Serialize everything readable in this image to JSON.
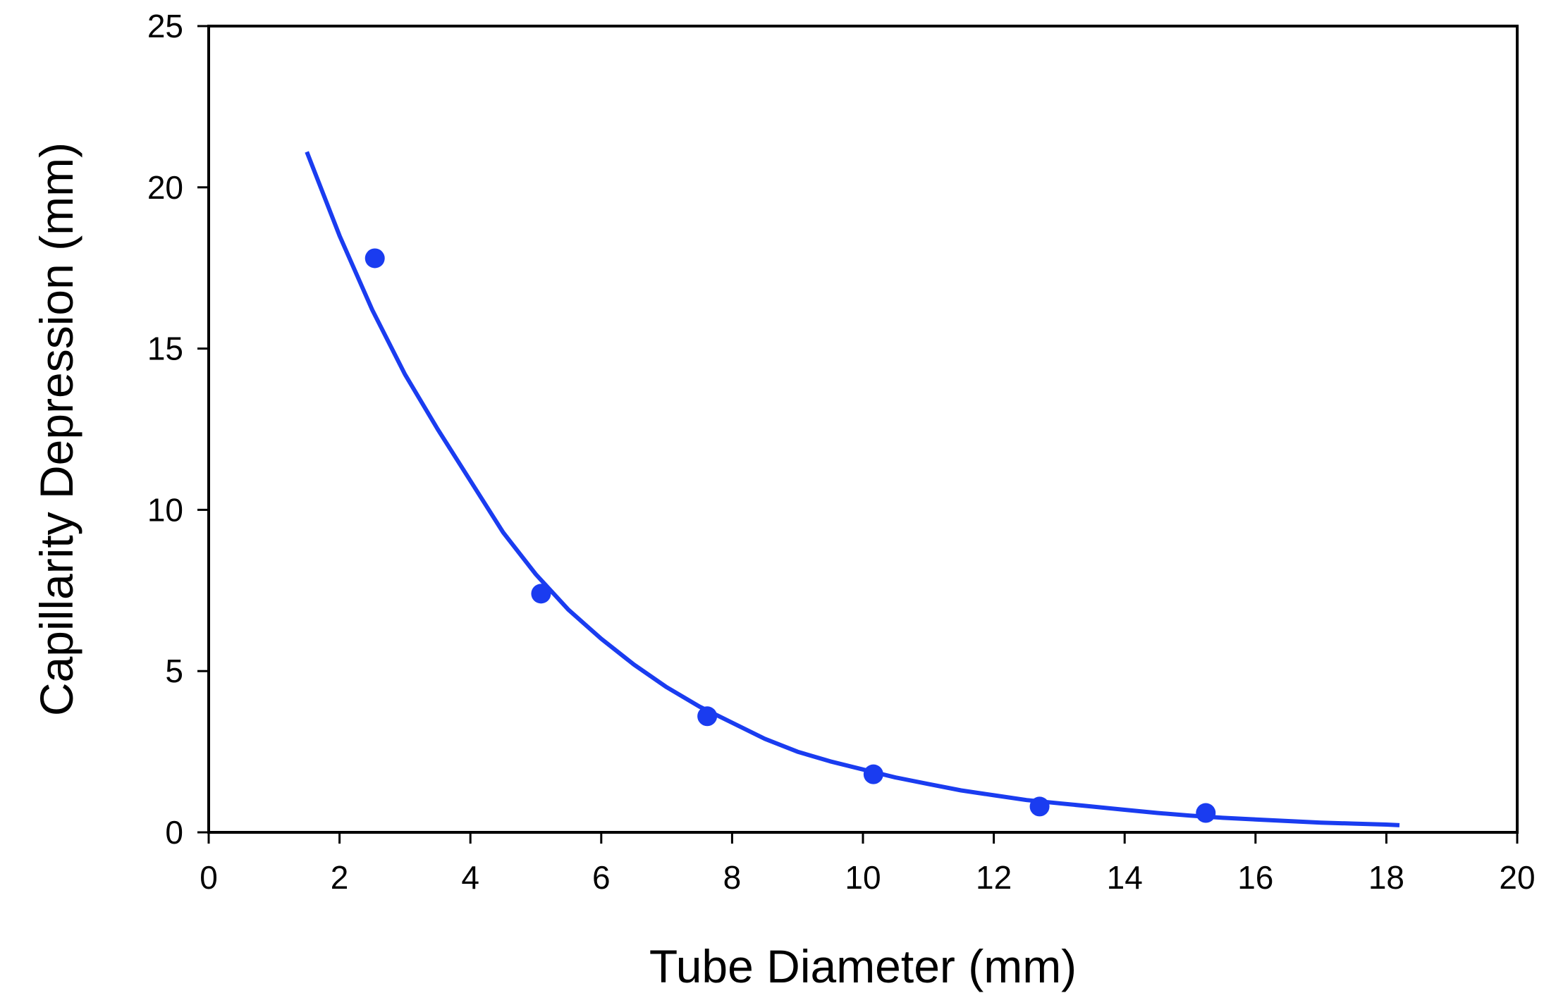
{
  "chart_data": {
    "type": "scatter",
    "title": "",
    "xlabel": "Tube Diameter (mm)",
    "ylabel": "Capillarity Depression (mm)",
    "xlim": [
      0,
      20
    ],
    "ylim": [
      0,
      25
    ],
    "xticks": [
      0,
      2,
      4,
      6,
      8,
      10,
      12,
      14,
      16,
      18,
      20
    ],
    "yticks": [
      0,
      5,
      10,
      15,
      20,
      25
    ],
    "grid": false,
    "legend": "none",
    "colors": {
      "series": "#1a3cf0",
      "axis": "#000000"
    },
    "series": [
      {
        "kind": "points",
        "x": [
          2.54,
          5.08,
          7.62,
          10.16,
          12.7,
          15.24
        ],
        "y": [
          17.8,
          7.4,
          3.6,
          1.8,
          0.8,
          0.6
        ]
      },
      {
        "kind": "trendline",
        "x": [
          1.5,
          2.0,
          2.5,
          3.0,
          3.5,
          4.0,
          4.5,
          5.0,
          5.5,
          6.0,
          6.5,
          7.0,
          7.5,
          8.0,
          8.5,
          9.0,
          9.5,
          10.0,
          10.5,
          11.0,
          11.5,
          12.0,
          12.5,
          13.0,
          13.5,
          14.0,
          14.5,
          15.0,
          15.5,
          16.0,
          16.5,
          17.0,
          17.5,
          18.0,
          18.2
        ],
        "y": [
          21.1,
          18.5,
          16.2,
          14.2,
          12.5,
          10.9,
          9.3,
          8.0,
          6.9,
          6.0,
          5.2,
          4.5,
          3.9,
          3.4,
          2.9,
          2.5,
          2.2,
          1.95,
          1.7,
          1.5,
          1.3,
          1.15,
          1.0,
          0.9,
          0.8,
          0.7,
          0.6,
          0.52,
          0.45,
          0.4,
          0.35,
          0.3,
          0.27,
          0.24,
          0.22
        ]
      }
    ]
  }
}
